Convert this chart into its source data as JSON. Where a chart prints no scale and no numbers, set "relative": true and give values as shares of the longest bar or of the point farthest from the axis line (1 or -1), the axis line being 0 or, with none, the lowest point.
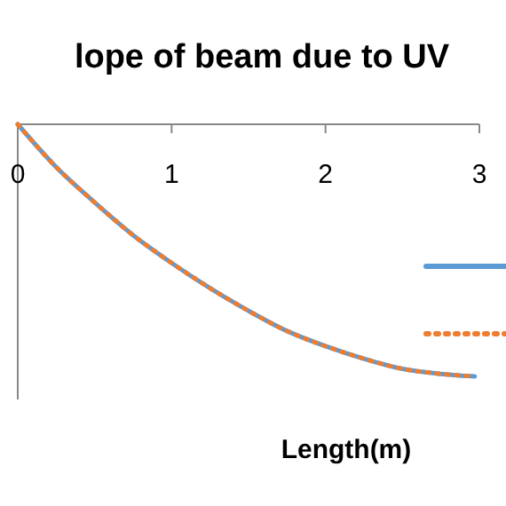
{
  "chart_data": {
    "type": "line",
    "title": "lope of beam due to UV",
    "xlabel": "Length(m)",
    "relative": true,
    "xlim": [
      0,
      3
    ],
    "xticks": [
      0,
      1,
      2,
      3
    ],
    "grid": false,
    "series": [
      {
        "color": "#5b9bd5",
        "line_style": "solid",
        "x": [
          0,
          0.25,
          0.5,
          0.75,
          1,
          1.25,
          1.5,
          1.75,
          2,
          2.25,
          2.5,
          2.75,
          2.97
        ],
        "values": [
          0,
          -0.17,
          -0.31,
          -0.44,
          -0.55,
          -0.65,
          -0.74,
          -0.82,
          -0.88,
          -0.93,
          -0.97,
          -0.99,
          -1
        ]
      },
      {
        "color": "#ed7d31",
        "line_style": "dotted",
        "x": [
          0,
          0.25,
          0.5,
          0.75,
          1,
          1.25,
          1.5,
          1.75,
          2,
          2.25,
          2.5,
          2.75,
          2.97
        ],
        "values": [
          0,
          -0.17,
          -0.31,
          -0.44,
          -0.55,
          -0.65,
          -0.74,
          -0.82,
          -0.88,
          -0.93,
          -0.97,
          -0.99,
          -1
        ]
      }
    ]
  }
}
